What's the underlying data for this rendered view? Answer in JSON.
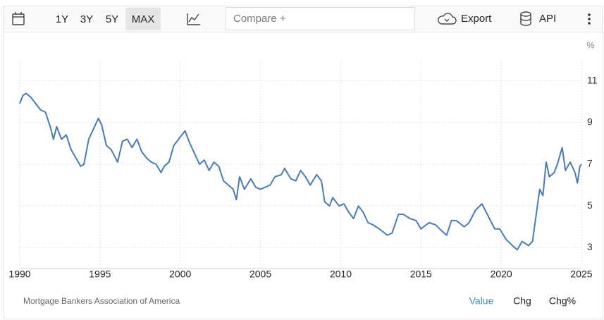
{
  "toolbar": {
    "ranges": [
      "1Y",
      "3Y",
      "5Y",
      "MAX"
    ],
    "compare": "Compare +",
    "export": "Export",
    "api": "API"
  },
  "chart_data": {
    "type": "line",
    "y_unit": "%",
    "source": "Mortgage Bankers Association of America",
    "color": "#4a7ab5",
    "x": [
      1990.0,
      1990.2,
      1990.4,
      1990.7,
      1991.0,
      1991.3,
      1991.6,
      1991.9,
      1992.1,
      1992.3,
      1992.6,
      1992.9,
      1993.2,
      1993.5,
      1993.8,
      1994.0,
      1994.3,
      1994.6,
      1994.9,
      1995.1,
      1995.4,
      1995.7,
      1995.9,
      1996.1,
      1996.4,
      1996.7,
      1997.0,
      1997.3,
      1997.6,
      1997.9,
      1998.2,
      1998.5,
      1998.8,
      1999.0,
      1999.3,
      1999.6,
      2000.0,
      2000.3,
      2000.6,
      2000.9,
      2001.2,
      2001.5,
      2001.8,
      2002.1,
      2002.4,
      2002.7,
      2003.0,
      2003.3,
      2003.5,
      2003.7,
      2004.0,
      2004.4,
      2004.7,
      2005.0,
      2005.3,
      2005.6,
      2005.9,
      2006.3,
      2006.5,
      2006.9,
      2007.2,
      2007.5,
      2007.8,
      2008.1,
      2008.5,
      2008.8,
      2009.0,
      2009.3,
      2009.5,
      2009.9,
      2010.2,
      2010.5,
      2010.8,
      2011.1,
      2011.4,
      2011.7,
      2012.0,
      2012.4,
      2012.9,
      2013.2,
      2013.6,
      2013.9,
      2014.3,
      2014.7,
      2015.0,
      2015.5,
      2015.9,
      2016.3,
      2016.6,
      2016.9,
      2017.2,
      2017.7,
      2018.0,
      2018.4,
      2018.8,
      2019.2,
      2019.6,
      2019.9,
      2020.3,
      2020.7,
      2021.0,
      2021.3,
      2021.7,
      2021.95,
      2022.2,
      2022.4,
      2022.6,
      2022.8,
      2023.0,
      2023.3,
      2023.5,
      2023.8,
      2024.0,
      2024.3,
      2024.6,
      2024.75,
      2024.9,
      2025.0
    ],
    "values": [
      9.9,
      10.3,
      10.4,
      10.2,
      9.9,
      9.6,
      9.5,
      8.8,
      8.2,
      8.8,
      8.2,
      8.4,
      7.7,
      7.3,
      6.9,
      7.0,
      8.2,
      8.7,
      9.2,
      8.9,
      7.9,
      7.7,
      7.4,
      7.1,
      8.1,
      8.2,
      7.8,
      8.2,
      7.6,
      7.3,
      7.1,
      7.0,
      6.6,
      6.9,
      7.1,
      7.9,
      8.3,
      8.6,
      8.0,
      7.5,
      7.0,
      7.2,
      6.7,
      7.1,
      6.9,
      6.2,
      6.0,
      5.8,
      5.3,
      6.4,
      5.8,
      6.3,
      5.9,
      5.8,
      5.9,
      6.0,
      6.4,
      6.5,
      6.8,
      6.3,
      6.2,
      6.7,
      6.4,
      6.0,
      6.5,
      6.2,
      5.2,
      5.0,
      5.4,
      5.0,
      5.1,
      4.7,
      4.4,
      5.0,
      4.7,
      4.2,
      4.1,
      3.9,
      3.6,
      3.7,
      4.6,
      4.6,
      4.4,
      4.3,
      3.9,
      4.2,
      4.1,
      3.8,
      3.6,
      4.3,
      4.3,
      4.0,
      4.2,
      4.8,
      5.1,
      4.5,
      3.9,
      3.9,
      3.4,
      3.1,
      2.9,
      3.3,
      3.1,
      3.3,
      4.7,
      5.8,
      5.5,
      7.1,
      6.4,
      6.6,
      7.0,
      7.8,
      6.7,
      7.1,
      6.6,
      6.1,
      6.9,
      7.0
    ],
    "xlim": [
      1990,
      2025
    ],
    "xticks": [
      1990,
      1995,
      2000,
      2005,
      2010,
      2015,
      2020,
      2025
    ],
    "ylim": [
      2,
      12
    ],
    "yticks": [
      3,
      5,
      7,
      9,
      11
    ],
    "grid": true
  },
  "footer": {
    "tabs": [
      "Value",
      "Chg",
      "Chg%"
    ]
  }
}
